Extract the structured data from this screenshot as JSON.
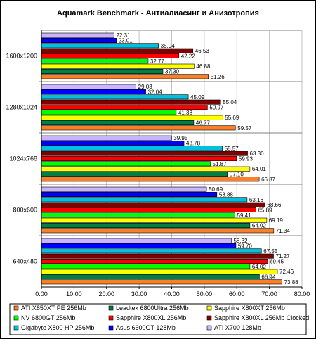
{
  "chart_data": {
    "type": "bar",
    "orientation": "horizontal",
    "title": "Aquamark Benchmark - Антиалиасинг и Анизотропия",
    "categories": [
      "1600x1200",
      "1280x1024",
      "1024x768",
      "800x600",
      "640x480"
    ],
    "xlim": [
      0,
      80
    ],
    "xticks": [
      "0.00",
      "10.00",
      "20.00",
      "30.00",
      "40.00",
      "50.00",
      "60.00",
      "70.00",
      "80.00"
    ],
    "grid": true,
    "legend_position": "bottom",
    "series": [
      {
        "name": "ATI X850XT PE 256Mb",
        "color": "#ff7f27",
        "values": [
          51.26,
          59.57,
          66.87,
          71.34,
          73.88
        ]
      },
      {
        "name": "Leadtek 6800Ultra 256Mb",
        "color": "#008040",
        "values": [
          37.3,
          46.77,
          57.1,
          64.02,
          66.94
        ]
      },
      {
        "name": "Sapphire X800XT 256Mb",
        "color": "#ffff00",
        "values": [
          46.88,
          55.69,
          64.01,
          69.19,
          72.46
        ]
      },
      {
        "name": "NV 6800GT 256Mb",
        "color": "#00ff00",
        "values": [
          32.77,
          41.38,
          51.87,
          59.41,
          64.02
        ]
      },
      {
        "name": "Sapphire X800XL 256Mb",
        "color": "#ff0000",
        "values": [
          42.22,
          50.97,
          59.93,
          65.89,
          69.45
        ]
      },
      {
        "name": "Sapphire X800XL 256Mb Clocked",
        "color": "#800000",
        "values": [
          46.53,
          55.04,
          63.3,
          68.66,
          71.27
        ]
      },
      {
        "name": "Gigabyte X800 HP 256Mb",
        "color": "#00c0e0",
        "values": [
          35.94,
          45.09,
          55.57,
          63.16,
          67.55
        ]
      },
      {
        "name": "Asus 6600GT 128Mb",
        "color": "#0000ff",
        "values": [
          23.01,
          32.04,
          43.78,
          53.88,
          59.7
        ]
      },
      {
        "name": "ATI X700 128Mb",
        "color": "#c8b4ff",
        "values": [
          22.31,
          29.03,
          39.95,
          50.69,
          58.32
        ]
      }
    ]
  }
}
